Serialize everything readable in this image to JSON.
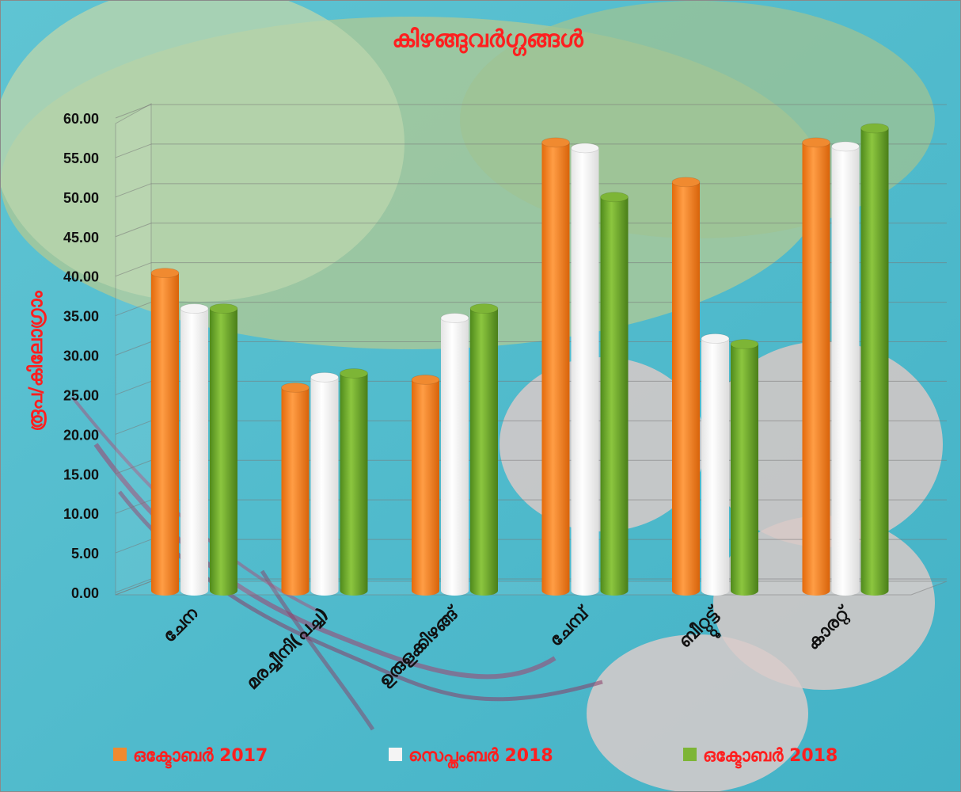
{
  "chart_data": {
    "type": "bar",
    "title": "കിഴങ്ങുവർഗ്ഗങ്ങൾ",
    "ylabel": "രൂപ/കിലോഗ്രാം",
    "xlabel": "",
    "ylim": [
      0,
      60
    ],
    "yticks": [
      "0.00",
      "5.00",
      "10.00",
      "15.00",
      "20.00",
      "25.00",
      "30.00",
      "35.00",
      "40.00",
      "45.00",
      "50.00",
      "55.00",
      "60.00"
    ],
    "categories": [
      "ചേന",
      "മരച്ചീനി(പച്ച)",
      "ഉരുളക്കിഴങ്ങ്",
      "ചേമ്പ്",
      "ബീറ്റ്റൂട്ട്",
      "കാരറ്റ്"
    ],
    "series": [
      {
        "name": "ഒക്ടോബർ 2017",
        "color": "#f4801f",
        "values": [
          39.0,
          24.5,
          25.5,
          55.5,
          50.5,
          55.5
        ]
      },
      {
        "name": "സെപ്തംബർ 2018",
        "color": "#ffffff",
        "values": [
          34.5,
          25.8,
          33.3,
          54.8,
          30.7,
          55.0
        ]
      },
      {
        "name": "ഒക്ടോബർ 2018",
        "color": "#6ea42c",
        "values": [
          34.5,
          26.3,
          34.5,
          48.6,
          30.0,
          57.3
        ]
      }
    ],
    "grid": true,
    "legend": "bottom"
  }
}
